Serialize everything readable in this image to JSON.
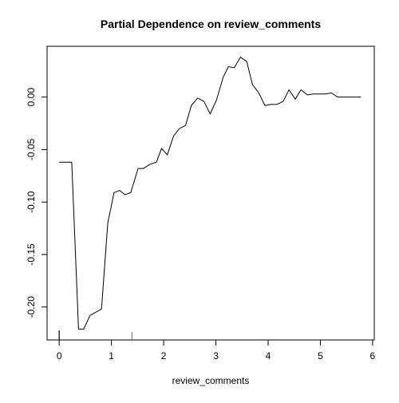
{
  "chart_data": {
    "type": "line",
    "title": "Partial Dependence on review_comments",
    "x_label": "review_comments",
    "x": [
      0,
      0.24,
      0.37,
      0.47,
      0.59,
      0.81,
      0.93,
      1.05,
      1.16,
      1.26,
      1.37,
      1.51,
      1.61,
      1.74,
      1.86,
      1.96,
      2.07,
      2.19,
      2.3,
      2.42,
      2.53,
      2.65,
      2.77,
      2.89,
      3.01,
      3.14,
      3.24,
      3.35,
      3.47,
      3.59,
      3.7,
      3.82,
      3.94,
      4.05,
      4.17,
      4.29,
      4.4,
      4.52,
      4.63,
      4.75,
      4.87,
      4.99,
      5.1,
      5.21,
      5.33,
      5.78
    ],
    "values": [
      -0.062,
      -0.062,
      -0.221,
      -0.221,
      -0.208,
      -0.202,
      -0.12,
      -0.091,
      -0.089,
      -0.093,
      -0.091,
      -0.068,
      -0.068,
      -0.064,
      -0.062,
      -0.049,
      -0.055,
      -0.037,
      -0.03,
      -0.027,
      -0.008,
      -0.001,
      -0.004,
      -0.016,
      -0.003,
      0.019,
      0.029,
      0.028,
      0.038,
      0.034,
      0.012,
      0.004,
      -0.008,
      -0.007,
      -0.007,
      -0.004,
      0.007,
      -0.002,
      0.007,
      0.002,
      0.003,
      0.003,
      0.003,
      0.004,
      0.0,
      0.0
    ],
    "color": "#000000",
    "rug": [
      0,
      1.39
    ],
    "xlim": [
      -0.232,
      6.032
    ],
    "xticks": [
      0,
      1,
      2,
      3,
      4,
      5,
      6
    ],
    "ylim": [
      -0.2314,
      0.0484
    ],
    "yticks": [
      {
        "value": -0.2,
        "label": "-0.20"
      },
      -0.15,
      {
        "value": -0.1,
        "label": "-0.10"
      },
      -0.05,
      {
        "value": 0,
        "label": "0.00"
      }
    ]
  }
}
